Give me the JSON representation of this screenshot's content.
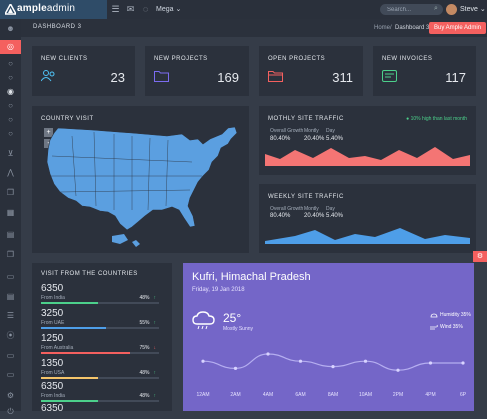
{
  "header": {
    "logo_bold": "ample",
    "logo_light": "admin",
    "mega_label": "Mega",
    "search_placeholder": "Search...",
    "user_name": "Steve",
    "icons": [
      "menu-icon",
      "mail-icon",
      "chat-icon",
      "search-icon",
      "chevron-down-icon"
    ]
  },
  "breadcrumb": {
    "title": "DASHBOARD 3",
    "home": "Home",
    "separator": "/",
    "current": "Dashboard 3",
    "buy_label": "Buy Ample Admin"
  },
  "sidebar": {
    "icons": [
      "user-icon",
      "dashboard-icon",
      "circle-icon",
      "circle-icon",
      "circle-icon",
      "circle-icon",
      "circle-icon",
      "circle-icon",
      "cart-icon",
      "chart-icon",
      "copy-icon",
      "grid-icon",
      "table-icon",
      "copy-icon",
      "doc-icon",
      "table-icon",
      "layers-icon",
      "chart-line-icon",
      "pages-icon",
      "card-icon",
      "settings-icon",
      "power-icon"
    ]
  },
  "stats": [
    {
      "label": "NEW CLIENTS",
      "value": "23",
      "icon": "clients-icon",
      "color": "#4fc3f7"
    },
    {
      "label": "NEW PROJECTS",
      "value": "169",
      "icon": "folder-icon",
      "color": "#7b6cf0"
    },
    {
      "label": "OPEN PROJECTS",
      "value": "311",
      "icon": "folder-open-icon",
      "color": "#f4605f"
    },
    {
      "label": "NEW INVOICES",
      "value": "117",
      "icon": "invoice-icon",
      "color": "#4cd08b"
    }
  ],
  "country": {
    "title": "COUNTRY VISIT",
    "zoom_in": "+",
    "zoom_out": "-",
    "map_color": "#5b9fe0"
  },
  "monthly": {
    "title": "MOTHLY SITE TRAFFIC",
    "legend": "● 10% high than last month",
    "cols": [
      "Overall Growth",
      "Montly",
      "Day"
    ],
    "vals": [
      "80.40%",
      "20.40%",
      "5.40%"
    ],
    "color": "#f47574"
  },
  "weekly": {
    "title": "WEEKLY SITE TRAFFIC",
    "legend": "● 10% high than last month",
    "cols": [
      "Overall Growth",
      "Montly",
      "Day"
    ],
    "vals": [
      "80.40%",
      "20.40%",
      "5.40%"
    ],
    "color": "#4e9ee8"
  },
  "visits": {
    "title": "VISIT FROM THE COUNTRIES",
    "rows": [
      {
        "value": "6350",
        "from": "From India",
        "pct": "48%",
        "arrow": "↑",
        "progress": 0.48,
        "color": "#4cd08b"
      },
      {
        "value": "3250",
        "from": "From UAE",
        "pct": "55%",
        "arrow": "↑",
        "progress": 0.55,
        "color": "#4e9ee8"
      },
      {
        "value": "1250",
        "from": "From Australia",
        "pct": "75%",
        "arrow": "↓",
        "progress": 0.75,
        "color": "#f4605f"
      },
      {
        "value": "1350",
        "from": "From USA",
        "pct": "48%",
        "arrow": "↑",
        "progress": 0.48,
        "color": "#f5c56b"
      },
      {
        "value": "6350",
        "from": "From India",
        "pct": "48%",
        "arrow": "↑",
        "progress": 0.48,
        "color": "#4cd08b"
      },
      {
        "value": "6350",
        "from": "",
        "pct": "",
        "arrow": "",
        "progress": 0,
        "color": "#4cd08b"
      }
    ]
  },
  "weather": {
    "city": "Kufri, Himachal Pradesh",
    "date": "Friday, 19 Jan 2018",
    "temp": "25°",
    "condition": "Mostly Sunny",
    "humidity": "Humidity 35%",
    "wind": "Wind 35%",
    "hours": [
      "12AM",
      "2AM",
      "4AM",
      "6AM",
      "8AM",
      "10AM",
      "2PM",
      "4PM",
      "6P"
    ],
    "trend": [
      0.55,
      0.35,
      0.75,
      0.55,
      0.4,
      0.55,
      0.3,
      0.5,
      0.5
    ]
  },
  "help_icon": "gear-icon"
}
